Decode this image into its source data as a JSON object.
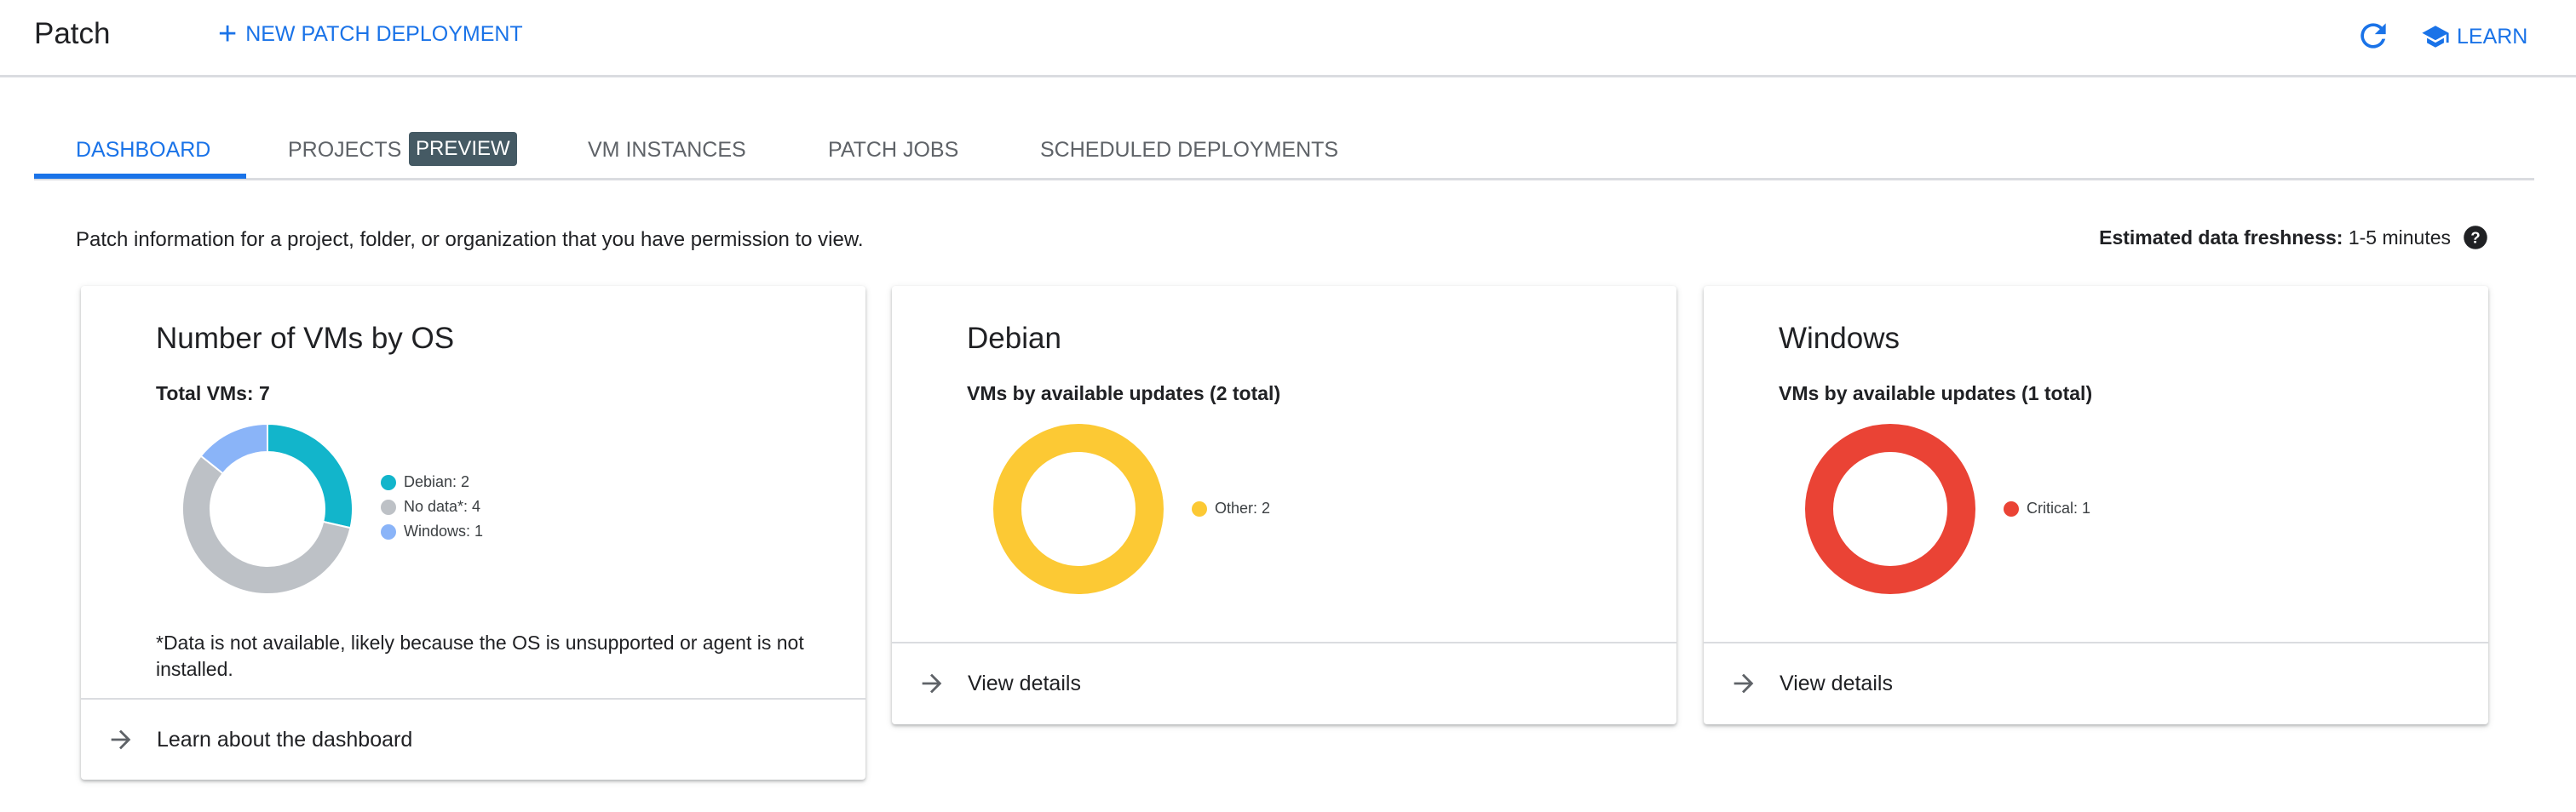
{
  "header": {
    "title": "Patch",
    "new_deployment": "NEW PATCH DEPLOYMENT",
    "learn": "LEARN",
    "icons": [
      "plus-icon",
      "refresh-icon",
      "school-icon"
    ]
  },
  "tabs": [
    {
      "label": "DASHBOARD",
      "active": true
    },
    {
      "label": "PROJECTS",
      "badge": "PREVIEW"
    },
    {
      "label": "VM INSTANCES"
    },
    {
      "label": "PATCH JOBS"
    },
    {
      "label": "SCHEDULED DEPLOYMENTS"
    }
  ],
  "description": "Patch information for a project, folder, or organization that you have permission to view.",
  "freshness": {
    "label": "Estimated data freshness:",
    "value": "1-5 minutes"
  },
  "colors": {
    "accent": "#1a73e8",
    "debian": "#12b5cb",
    "nodata": "#bdc1c6",
    "windows": "#8ab4f8",
    "other": "#fcc934",
    "critical": "#ea4335"
  },
  "cards": {
    "os": {
      "title": "Number of VMs by OS",
      "subtitle": "Total VMs: 7",
      "note": "*Data is not available, likely because the OS is unsupported or agent is not installed.",
      "footer": "Learn about the dashboard",
      "legend": [
        "Debian: 2",
        "No data*: 4",
        "Windows: 1"
      ]
    },
    "debian": {
      "title": "Debian",
      "subtitle": "VMs by available updates (2 total)",
      "legend": [
        "Other: 2"
      ],
      "footer": "View details"
    },
    "windows": {
      "title": "Windows",
      "subtitle": "VMs by available updates (1 total)",
      "legend": [
        "Critical: 1"
      ],
      "footer": "View details"
    }
  },
  "chart_data": [
    {
      "type": "pie",
      "donut": true,
      "categories": [
        "Debian",
        "No data*",
        "Windows"
      ],
      "values": [
        2,
        4,
        1
      ],
      "colors": [
        "#12b5cb",
        "#bdc1c6",
        "#8ab4f8"
      ],
      "legend": "right"
    },
    {
      "type": "pie",
      "donut": true,
      "categories": [
        "Other"
      ],
      "values": [
        2
      ],
      "colors": [
        "#fcc934"
      ],
      "legend": "right"
    },
    {
      "type": "pie",
      "donut": true,
      "categories": [
        "Critical"
      ],
      "values": [
        1
      ],
      "colors": [
        "#ea4335"
      ],
      "legend": "right"
    }
  ]
}
